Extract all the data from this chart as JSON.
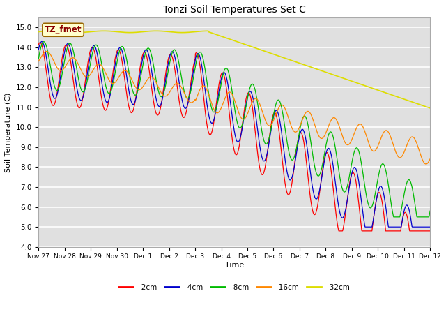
{
  "title": "Tonzi Soil Temperatures Set C",
  "xlabel": "Time",
  "ylabel": "Soil Temperature (C)",
  "ylim": [
    4.0,
    15.5
  ],
  "yticks": [
    4.0,
    5.0,
    6.0,
    7.0,
    8.0,
    9.0,
    10.0,
    11.0,
    12.0,
    13.0,
    14.0,
    15.0
  ],
  "series_colors": [
    "#ff0000",
    "#0000cc",
    "#00bb00",
    "#ff8800",
    "#dddd00"
  ],
  "series_labels": [
    "-2cm",
    "-4cm",
    "-8cm",
    "-16cm",
    "-32cm"
  ],
  "legend_label": "TZ_fmet",
  "plot_bg_color": "#e0e0e0",
  "fig_bg_color": "#ffffff",
  "tick_labels": [
    "Nov 27",
    "Nov 28",
    "Nov 29",
    "Nov 30",
    "Dec 1",
    "Dec 2",
    "Dec 3",
    "Dec 4",
    "Dec 5",
    "Dec 6",
    "Dec 7",
    "Dec 8",
    "Dec 9",
    "Dec 10",
    "Dec 11",
    "Dec 12"
  ],
  "num_days": 16
}
